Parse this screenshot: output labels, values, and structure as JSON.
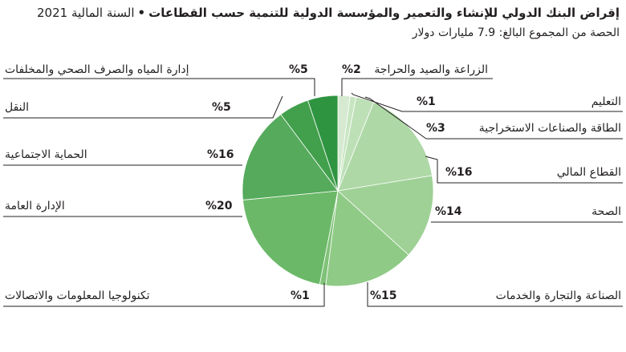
{
  "header": {
    "title": "إقراض البنك الدولي للإنشاء والتعمير والمؤسسة الدولية للتنمية حسب القطاعات",
    "separator": "•",
    "fiscal_year": "السنة المالية 2021",
    "subtitle": "الحصة من المجموع البالغ: 7.9 مليارات دولار"
  },
  "colors": {
    "leader_line": "#231f20",
    "slice_stroke": "#ffffff"
  },
  "chart_data": {
    "type": "pie",
    "title": "إقراض البنك الدولي للإنشاء والتعمير والمؤسسة الدولية للتنمية حسب القطاعات",
    "total_label": "7.9 مليارات دولار",
    "slices": [
      {
        "label": "الزراعة والصيد والحراجة",
        "pct_label": "%2",
        "value": 2,
        "color": "#d5ead0"
      },
      {
        "label": "التعليم",
        "pct_label": "%1",
        "value": 1,
        "color": "#c8e5c2"
      },
      {
        "label": "الطاقة والصناعات الاستخراجية",
        "pct_label": "%3",
        "value": 3,
        "color": "#bde0b6"
      },
      {
        "label": "القطاع المالي",
        "pct_label": "%16",
        "value": 16,
        "color": "#aed8a6"
      },
      {
        "label": "الصحة",
        "pct_label": "%14",
        "value": 14,
        "color": "#9fd196"
      },
      {
        "label": "الصناعة والتجارة والخدمات",
        "pct_label": "%15",
        "value": 15,
        "color": "#8fca86"
      },
      {
        "label": "تكنولوجيا المعلومات والاتصالات",
        "pct_label": "%1",
        "value": 1,
        "color": "#80c277"
      },
      {
        "label": "الإدارة العامة",
        "pct_label": "%20",
        "value": 20,
        "color": "#6bb968"
      },
      {
        "label": "الحماية الاجتماعية",
        "pct_label": "%16",
        "value": 16,
        "color": "#55aa5c"
      },
      {
        "label": "النقل",
        "pct_label": "%5",
        "value": 5,
        "color": "#42a04c"
      },
      {
        "label": "إدارة المياه والصرف الصحي والمخلفات",
        "pct_label": "%5",
        "value": 5,
        "color": "#2f9440"
      }
    ]
  }
}
